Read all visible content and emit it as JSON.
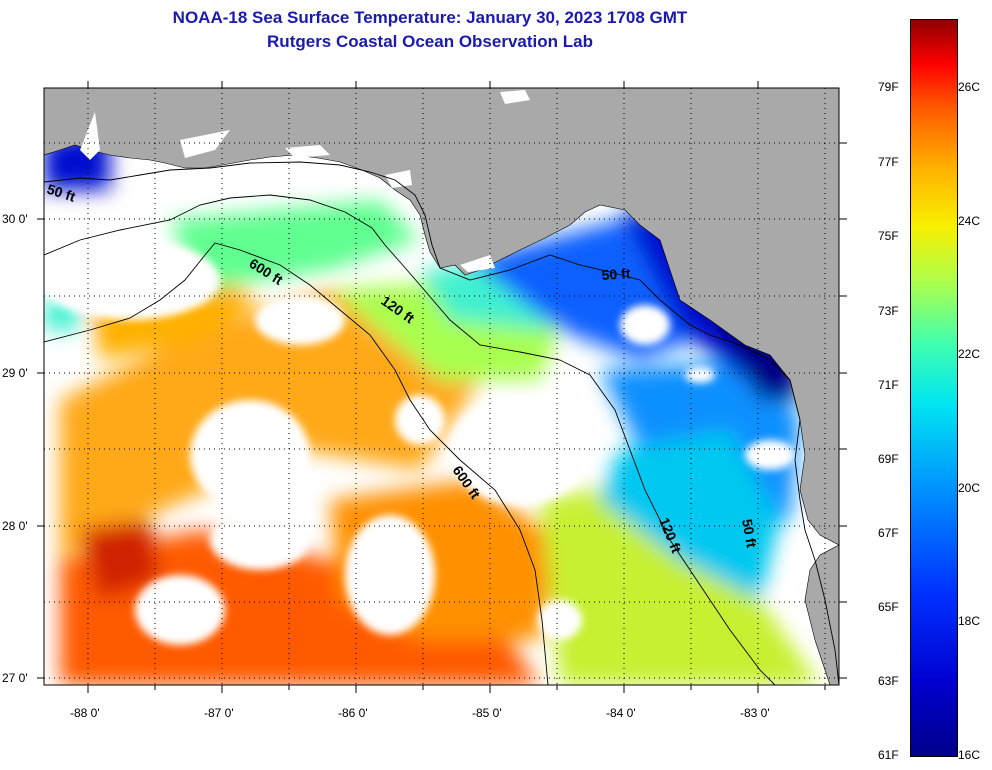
{
  "title_line1": "NOAA-18 Sea Surface Temperature:  January 30, 2023 1708 GMT",
  "title_line2": "Rutgers Coastal Ocean Observation Lab",
  "lat_labels": [
    "30 0'",
    "29 0'",
    "28 0'",
    "27 0'"
  ],
  "lon_labels": [
    "-88 0'",
    "-87 0'",
    "-86 0'",
    "-85 0'",
    "-84 0'",
    "-83 0'"
  ],
  "contour_labels": [
    "50 ft",
    "50 ft",
    "50 ft",
    "120 ft",
    "120 ft",
    "600 ft",
    "600 ft"
  ],
  "colorbar_f": [
    "79F",
    "77F",
    "75F",
    "73F",
    "71F",
    "69F",
    "67F",
    "65F",
    "63F",
    "61F"
  ],
  "colorbar_c": [
    "26C",
    "24C",
    "22C",
    "20C",
    "18C",
    "16C"
  ],
  "colors": {
    "land": "#a9a9a9",
    "cloud": "#ffffff",
    "title": "#1a1ab0"
  }
}
